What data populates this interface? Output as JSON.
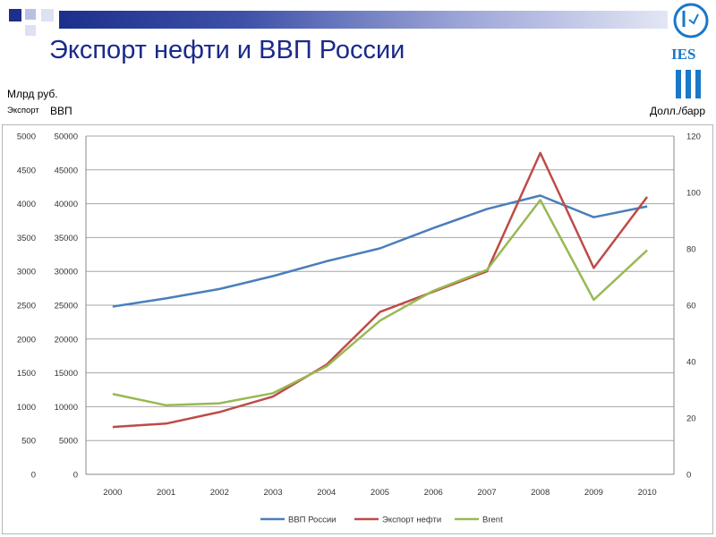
{
  "slide": {
    "title": "Экспорт нефти и ВВП России",
    "unit_left": "Млрд руб.",
    "series_left_1": "Экспорт",
    "series_left_2": "ВВП",
    "unit_right": "Долл./барр",
    "logo_text": "IES",
    "colors": {
      "title": "#1a2a8a",
      "bar_dark": "#1c2f8c",
      "logo": "#1a78c8"
    }
  },
  "chart_data": {
    "type": "line",
    "title": "",
    "categories": [
      "2000",
      "2001",
      "2002",
      "2003",
      "2004",
      "2005",
      "2006",
      "2007",
      "2008",
      "2009",
      "2010"
    ],
    "axes": {
      "left_export": {
        "min": 0,
        "max": 5000,
        "step": 500,
        "ticks": [
          "0",
          "500",
          "1000",
          "1500",
          "2000",
          "2500",
          "3000",
          "3500",
          "4000",
          "4500",
          "5000"
        ]
      },
      "left_gdp": {
        "min": 0,
        "max": 50000,
        "step": 5000,
        "ticks": [
          "0",
          "5000",
          "10000",
          "15000",
          "20000",
          "25000",
          "30000",
          "35000",
          "40000",
          "45000",
          "50000"
        ]
      },
      "right_brent": {
        "min": 0,
        "max": 120,
        "step": 20,
        "ticks": [
          "0",
          "20",
          "40",
          "60",
          "80",
          "100",
          "120"
        ]
      }
    },
    "grid": true,
    "legend_position": "bottom",
    "series": [
      {
        "name": "ВВП России",
        "axis": "left_gdp",
        "color": "#4a7ebb",
        "values": [
          24800,
          26000,
          27400,
          29300,
          31500,
          33400,
          36400,
          39200,
          41200,
          38000,
          39600
        ]
      },
      {
        "name": "Экспорт нефти",
        "axis": "left_export",
        "color": "#be4b48",
        "values": [
          700,
          750,
          920,
          1150,
          1620,
          2400,
          2700,
          3000,
          4750,
          3050,
          4100
        ]
      },
      {
        "name": "Brent",
        "axis": "right_brent",
        "color": "#98b954",
        "values": [
          28.5,
          24.5,
          25.2,
          28.8,
          38.3,
          54.5,
          65.1,
          72.5,
          97.3,
          61.9,
          79.5
        ]
      }
    ]
  }
}
